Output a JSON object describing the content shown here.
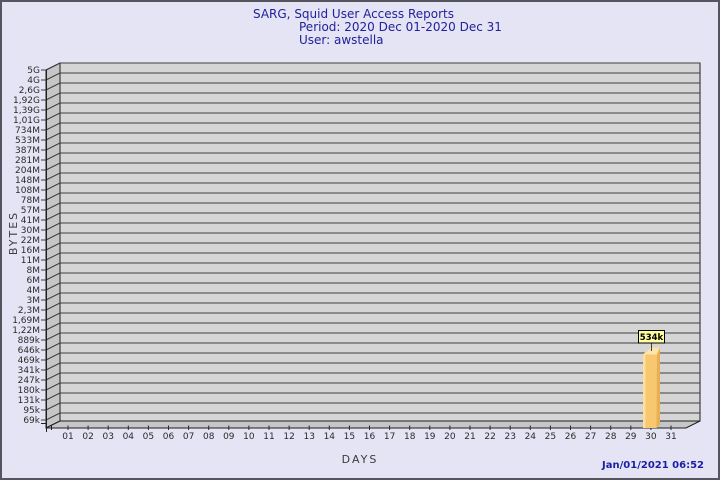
{
  "window": {
    "background": "#e4e4f4",
    "border_color": "#55555f"
  },
  "header": {
    "title": "SARG, Squid User Access Reports",
    "period": "Period: 2020 Dec 01-2020 Dec 31",
    "user": "User: awstella",
    "text_color": "#21219b"
  },
  "footer": {
    "generated": "Jan/01/2021 06:52"
  },
  "chart_data": {
    "type": "bar",
    "title": "SARG, Squid User Access Reports",
    "subtitle": "Period: 2020 Dec 01-2020 Dec 31",
    "user": "User: awstella",
    "xlabel": "DAYS",
    "ylabel": "BYTES",
    "y_scale": "log",
    "y_tick_labels": [
      "5G",
      "4G",
      "2,6G",
      "1,92G",
      "1,39G",
      "1,01G",
      "734M",
      "533M",
      "387M",
      "281M",
      "204M",
      "148M",
      "108M",
      "78M",
      "57M",
      "41M",
      "30M",
      "22M",
      "16M",
      "11M",
      "8M",
      "6M",
      "4M",
      "3M",
      "2,3M",
      "1,69M",
      "1,22M",
      "889k",
      "646k",
      "469k",
      "341k",
      "247k",
      "180k",
      "131k",
      "95k",
      "69k"
    ],
    "x_tick_labels": [
      "01",
      "02",
      "03",
      "04",
      "05",
      "06",
      "07",
      "08",
      "09",
      "10",
      "11",
      "12",
      "13",
      "14",
      "15",
      "16",
      "17",
      "18",
      "19",
      "20",
      "21",
      "22",
      "23",
      "24",
      "25",
      "26",
      "27",
      "28",
      "29",
      "30",
      "31"
    ],
    "values_bytes": [
      0,
      0,
      0,
      0,
      0,
      0,
      0,
      0,
      0,
      0,
      0,
      0,
      0,
      0,
      0,
      0,
      0,
      0,
      0,
      0,
      0,
      0,
      0,
      0,
      0,
      0,
      0,
      0,
      0,
      534000,
      0
    ],
    "highlighted_bar": {
      "day": "30",
      "label": "534k",
      "value_bytes": 534000
    },
    "colors": {
      "plot_wall": "#d5d5d5",
      "plot_side_wall": "#c6c6c6",
      "gridline": "#3f3f3f",
      "outline": "#1f1f1f",
      "bar_front": "#f7c86f",
      "bar_highlight": "#fbdf9e",
      "bar_top": "#fce4ad",
      "bar_shadow": "#e9af54",
      "value_box_bg": "#ffff9e",
      "axis_text": "#2b2b2b"
    }
  }
}
